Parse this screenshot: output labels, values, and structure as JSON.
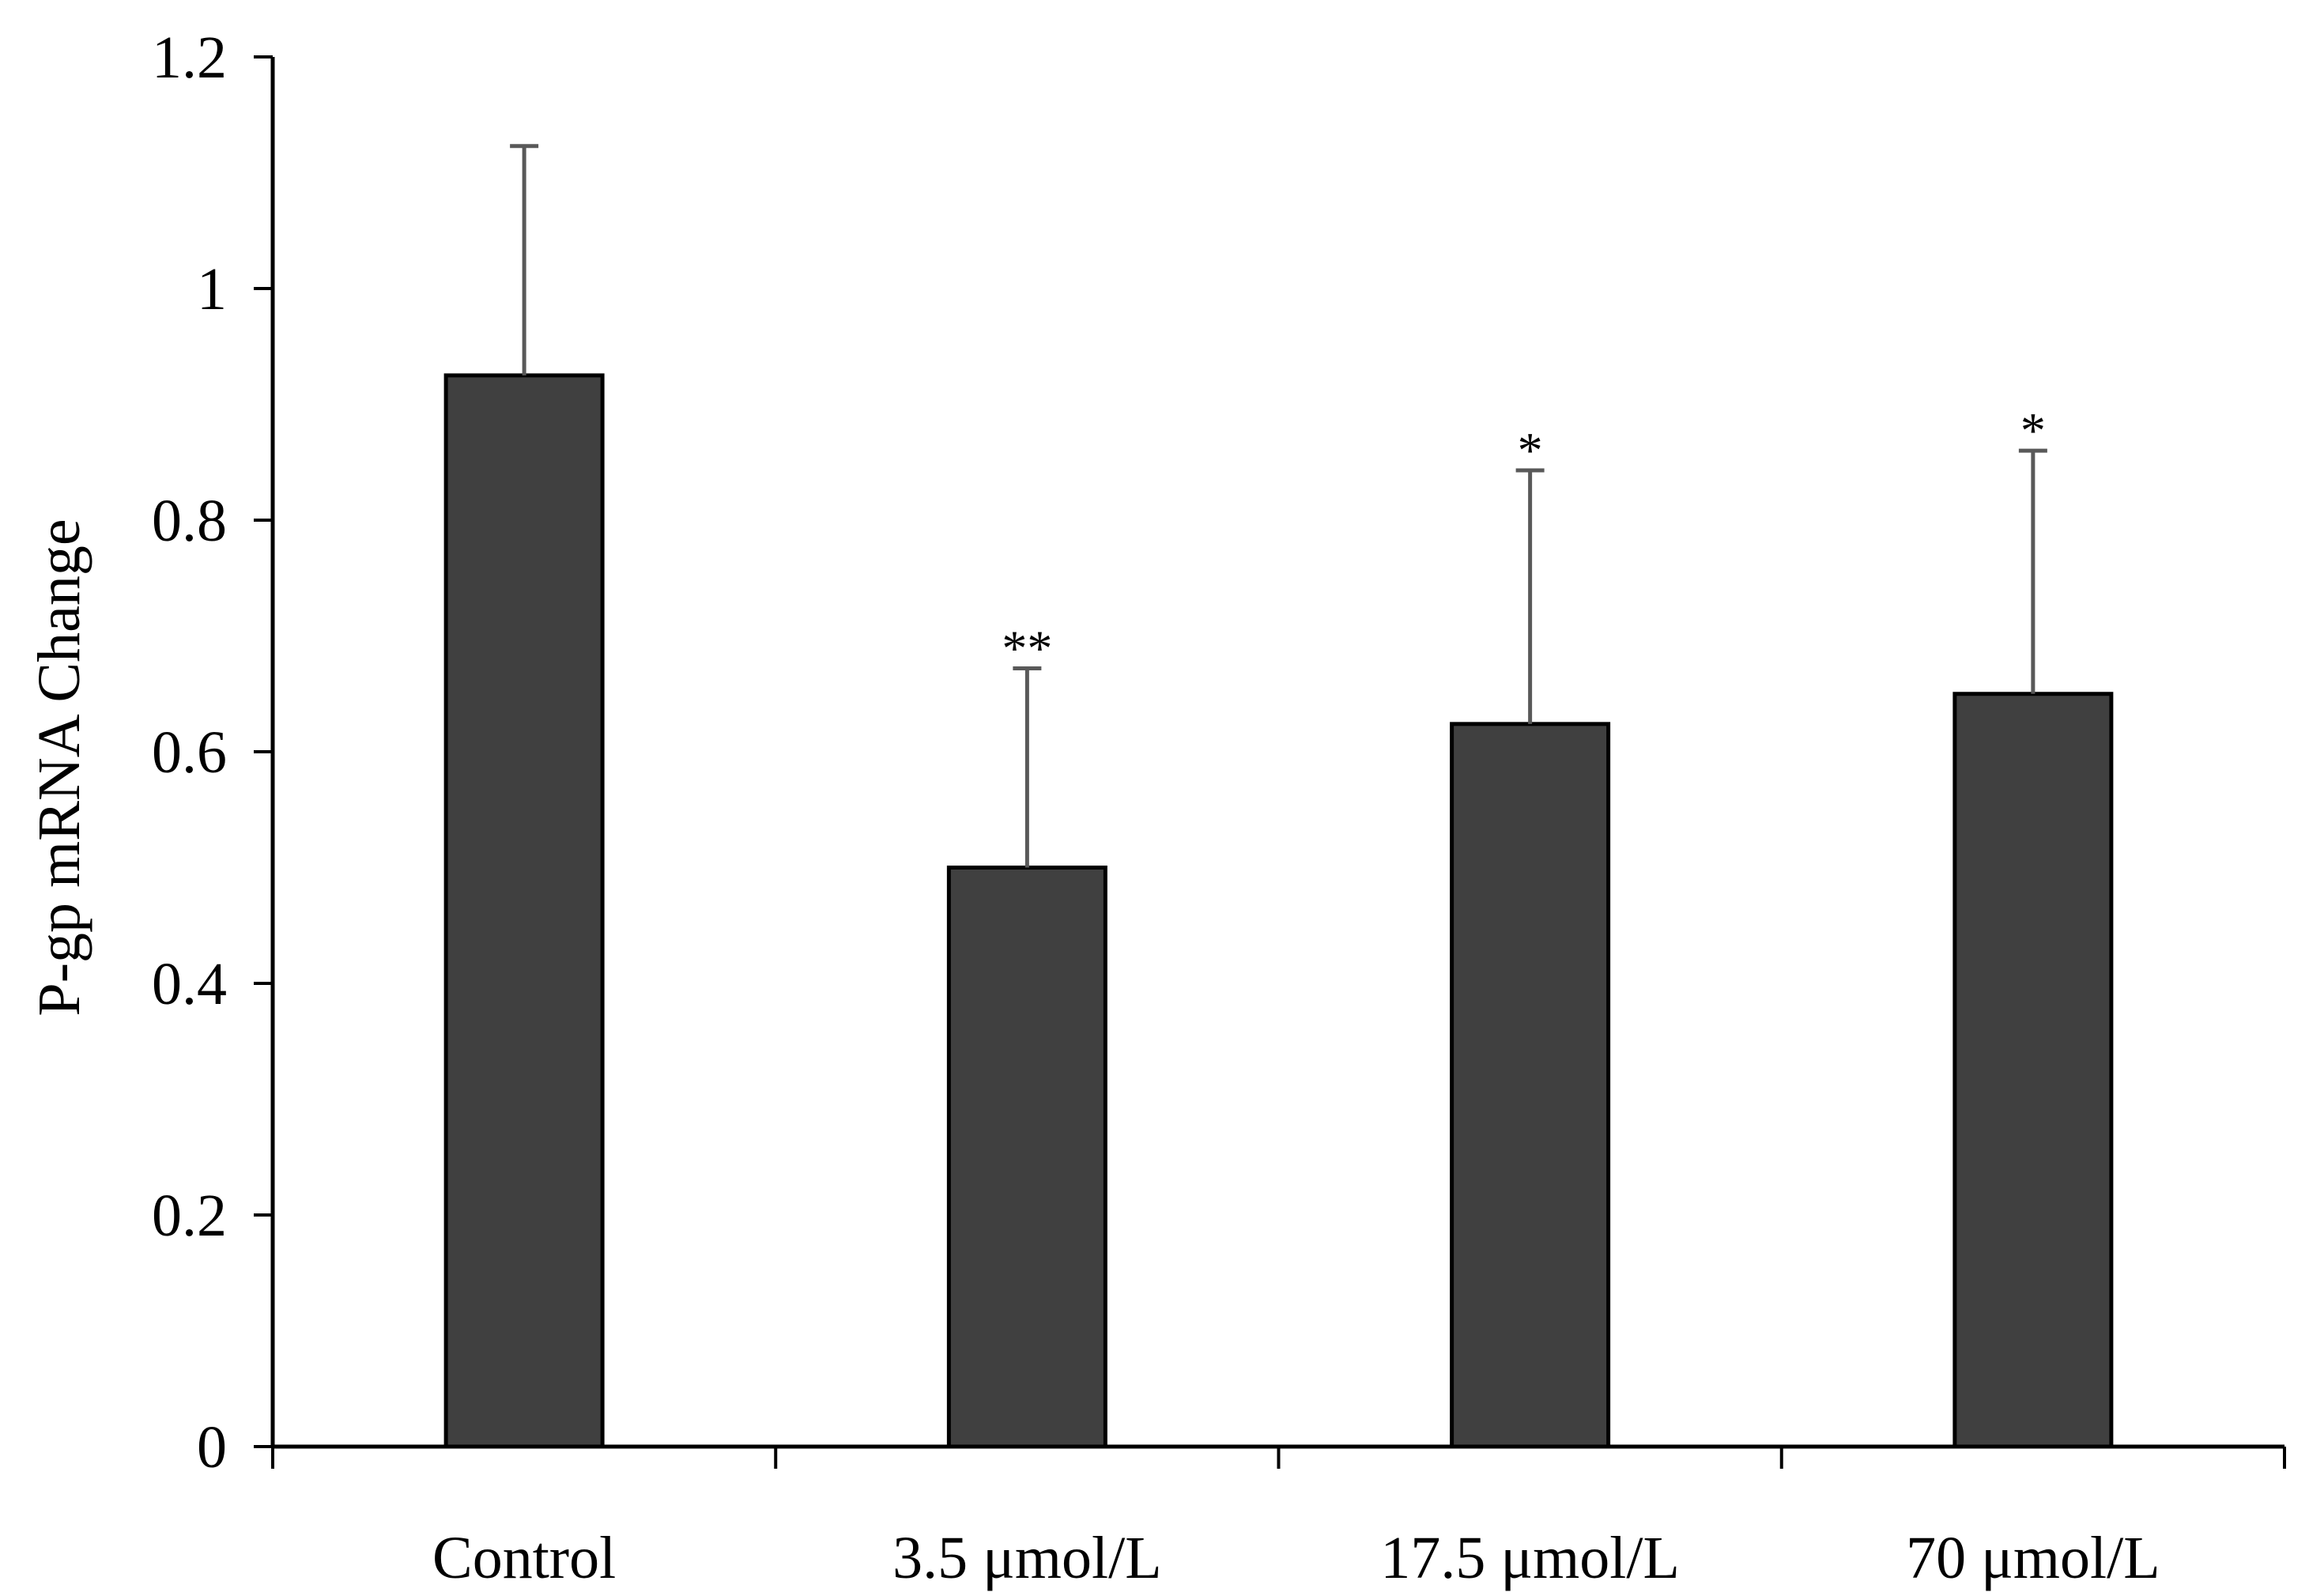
{
  "chart_data": {
    "type": "bar",
    "title": "",
    "xlabel": "",
    "ylabel": "P-gp mRNA Change",
    "ylim": [
      0,
      1.2
    ],
    "yticks": [
      "0",
      "0.2",
      "0.4",
      "0.6",
      "0.8",
      "1",
      "1.2"
    ],
    "categories": [
      "Control",
      "3.5 μmol/L",
      "17.5 μmol/L",
      "70 μmol/L"
    ],
    "series": [
      {
        "name": "P-gp mRNA Change",
        "values": [
          0.925,
          0.5,
          0.624,
          0.65
        ],
        "error_upper": [
          0.198,
          0.172,
          0.219,
          0.21
        ],
        "significance": [
          "",
          "**",
          "*",
          "*"
        ]
      }
    ],
    "grid": false,
    "legend": "none",
    "colors": {
      "bar_fill": "#404040",
      "bar_edge": "#000000",
      "error_bar": "#595959",
      "axis": "#000000"
    }
  }
}
